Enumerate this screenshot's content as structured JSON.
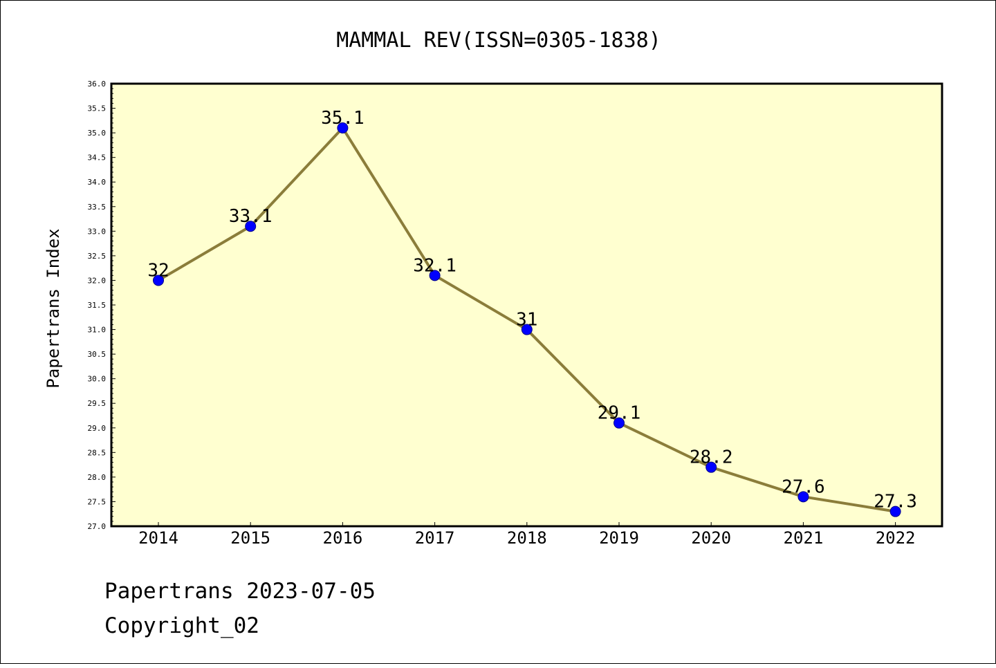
{
  "chart_data": {
    "type": "line",
    "title": "MAMMAL REV(ISSN=0305-1838)",
    "xlabel": "",
    "ylabel": "Papertrans Index",
    "categories": [
      "2014",
      "2015",
      "2016",
      "2017",
      "2018",
      "2019",
      "2020",
      "2021",
      "2022"
    ],
    "values": [
      32,
      33.1,
      35.1,
      32.1,
      31,
      29.1,
      28.2,
      27.6,
      27.3
    ],
    "data_labels": [
      "32",
      "33.1",
      "35.1",
      "32.1",
      "31",
      "29.1",
      "28.2",
      "27.6",
      "27.3"
    ],
    "ylim": [
      27.0,
      36.0
    ],
    "yticks": [
      "27.0",
      "27.5",
      "28.0",
      "28.5",
      "29.0",
      "29.5",
      "30.0",
      "30.5",
      "31.0",
      "31.5",
      "32.0",
      "32.5",
      "33.0",
      "33.5",
      "34.0",
      "34.5",
      "35.0",
      "35.5",
      "36.0"
    ],
    "grid": false,
    "colors": {
      "plot_background": "#FFFFD0",
      "line": "#8B7D3A",
      "marker": "#0000FF",
      "marker_edge": "#00008B"
    }
  },
  "footer": {
    "line1": "Papertrans 2023-07-05",
    "line2": "Copyright_02"
  }
}
